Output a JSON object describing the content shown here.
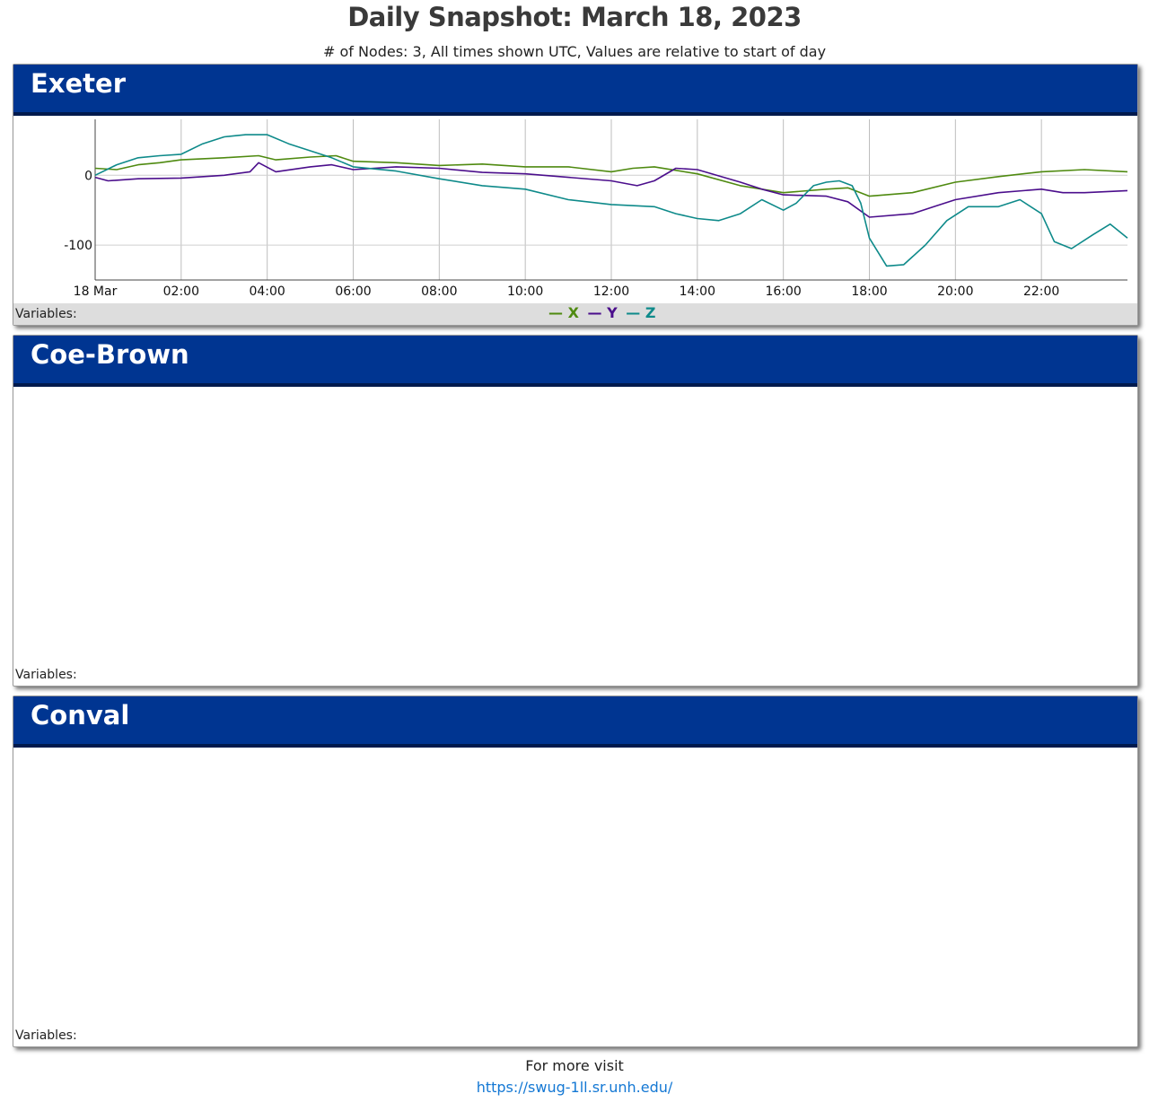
{
  "page": {
    "title": "Daily Snapshot: March 18, 2023",
    "subtitle": "# of Nodes: 3, All times shown UTC, Values are relative to start of day"
  },
  "panels": [
    {
      "name": "Exeter",
      "variables_label": "Variables:"
    },
    {
      "name": "Coe-Brown",
      "variables_label": "Variables:"
    },
    {
      "name": "Conval",
      "variables_label": "Variables:"
    }
  ],
  "legend": [
    {
      "dash": "—",
      "name": "X",
      "color": "#4f8a10"
    },
    {
      "dash": "—",
      "name": "Y",
      "color": "#4b0e8c"
    },
    {
      "dash": "—",
      "name": "Z",
      "color": "#0e8a8a"
    }
  ],
  "footer": {
    "text": "For more visit",
    "link": "https://swug-1ll.sr.unh.edu/"
  },
  "chart_data": {
    "type": "line",
    "title": "",
    "xlabel": "",
    "ylabel": "",
    "xlim": [
      0,
      24
    ],
    "ylim": [
      -150,
      80
    ],
    "x_ticks": [
      {
        "v": 0,
        "label": "18 Mar"
      },
      {
        "v": 2,
        "label": "02:00"
      },
      {
        "v": 4,
        "label": "04:00"
      },
      {
        "v": 6,
        "label": "06:00"
      },
      {
        "v": 8,
        "label": "08:00"
      },
      {
        "v": 10,
        "label": "10:00"
      },
      {
        "v": 12,
        "label": "12:00"
      },
      {
        "v": 14,
        "label": "14:00"
      },
      {
        "v": 16,
        "label": "16:00"
      },
      {
        "v": 18,
        "label": "18:00"
      },
      {
        "v": 20,
        "label": "20:00"
      },
      {
        "v": 22,
        "label": "22:00"
      }
    ],
    "y_ticks": [
      {
        "v": 0,
        "label": "0"
      },
      {
        "v": -100,
        "label": "-100"
      }
    ],
    "grid": true,
    "series": [
      {
        "name": "X",
        "color": "#4f8a10",
        "points": [
          [
            0,
            10
          ],
          [
            0.5,
            8
          ],
          [
            1,
            15
          ],
          [
            1.5,
            18
          ],
          [
            2,
            22
          ],
          [
            3,
            25
          ],
          [
            3.8,
            28
          ],
          [
            4.2,
            22
          ],
          [
            5,
            26
          ],
          [
            5.6,
            28
          ],
          [
            6,
            20
          ],
          [
            7,
            18
          ],
          [
            8,
            14
          ],
          [
            9,
            16
          ],
          [
            10,
            12
          ],
          [
            11,
            12
          ],
          [
            12,
            5
          ],
          [
            12.5,
            10
          ],
          [
            13,
            12
          ],
          [
            14,
            2
          ],
          [
            15,
            -15
          ],
          [
            16,
            -25
          ],
          [
            17,
            -20
          ],
          [
            17.5,
            -18
          ],
          [
            18,
            -30
          ],
          [
            19,
            -25
          ],
          [
            20,
            -10
          ],
          [
            21,
            -2
          ],
          [
            22,
            5
          ],
          [
            23,
            8
          ],
          [
            24,
            5
          ]
        ]
      },
      {
        "name": "Y",
        "color": "#4b0e8c",
        "points": [
          [
            0,
            -3
          ],
          [
            0.3,
            -8
          ],
          [
            1,
            -5
          ],
          [
            2,
            -4
          ],
          [
            3,
            0
          ],
          [
            3.6,
            5
          ],
          [
            3.8,
            18
          ],
          [
            4.2,
            5
          ],
          [
            5,
            12
          ],
          [
            5.5,
            15
          ],
          [
            6,
            8
          ],
          [
            7,
            12
          ],
          [
            8,
            10
          ],
          [
            9,
            4
          ],
          [
            10,
            2
          ],
          [
            11,
            -3
          ],
          [
            12,
            -8
          ],
          [
            12.6,
            -15
          ],
          [
            13,
            -8
          ],
          [
            13.5,
            10
          ],
          [
            14,
            8
          ],
          [
            15,
            -10
          ],
          [
            15.5,
            -20
          ],
          [
            16,
            -28
          ],
          [
            17,
            -30
          ],
          [
            17.5,
            -38
          ],
          [
            18,
            -60
          ],
          [
            19,
            -55
          ],
          [
            19.5,
            -45
          ],
          [
            20,
            -35
          ],
          [
            21,
            -25
          ],
          [
            22,
            -20
          ],
          [
            22.5,
            -25
          ],
          [
            23,
            -25
          ],
          [
            24,
            -22
          ]
        ]
      },
      {
        "name": "Z",
        "color": "#0e8a8a",
        "points": [
          [
            0,
            0
          ],
          [
            0.5,
            15
          ],
          [
            1,
            25
          ],
          [
            1.5,
            28
          ],
          [
            2,
            30
          ],
          [
            2.5,
            45
          ],
          [
            3,
            55
          ],
          [
            3.5,
            58
          ],
          [
            4,
            58
          ],
          [
            4.5,
            45
          ],
          [
            5,
            35
          ],
          [
            5.5,
            25
          ],
          [
            6,
            12
          ],
          [
            7,
            6
          ],
          [
            8,
            -5
          ],
          [
            9,
            -15
          ],
          [
            10,
            -20
          ],
          [
            11,
            -35
          ],
          [
            12,
            -42
          ],
          [
            13,
            -45
          ],
          [
            13.5,
            -55
          ],
          [
            14,
            -62
          ],
          [
            14.5,
            -65
          ],
          [
            15,
            -55
          ],
          [
            15.5,
            -35
          ],
          [
            16,
            -50
          ],
          [
            16.3,
            -40
          ],
          [
            16.7,
            -15
          ],
          [
            17,
            -10
          ],
          [
            17.3,
            -8
          ],
          [
            17.6,
            -15
          ],
          [
            17.8,
            -40
          ],
          [
            18,
            -90
          ],
          [
            18.4,
            -130
          ],
          [
            18.8,
            -128
          ],
          [
            19.3,
            -100
          ],
          [
            19.8,
            -65
          ],
          [
            20.3,
            -45
          ],
          [
            20.7,
            -45
          ],
          [
            21,
            -45
          ],
          [
            21.5,
            -35
          ],
          [
            22,
            -55
          ],
          [
            22.3,
            -95
          ],
          [
            22.7,
            -105
          ],
          [
            23.2,
            -85
          ],
          [
            23.6,
            -70
          ],
          [
            24,
            -90
          ]
        ]
      }
    ]
  }
}
